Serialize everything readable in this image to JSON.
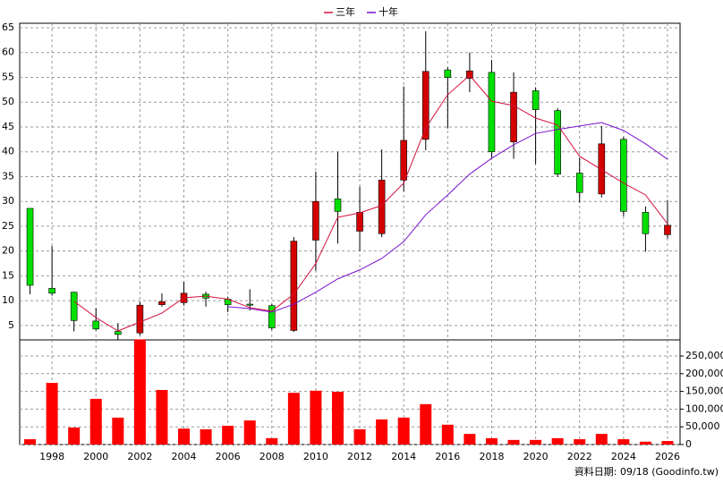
{
  "chart_data": [
    {
      "type": "candlestick",
      "x": [
        1997,
        1998,
        1999,
        2000,
        2001,
        2002,
        2003,
        2004,
        2005,
        2006,
        2007,
        2008,
        2009,
        2010,
        2011,
        2012,
        2013,
        2014,
        2015,
        2016,
        2017,
        2018,
        2019,
        2020,
        2021,
        2022,
        2023,
        2024,
        2025,
        2026
      ],
      "open": [
        28.6,
        12.5,
        11.7,
        5.9,
        3.8,
        3.5,
        9.2,
        9.6,
        11.3,
        10.3,
        9.3,
        9.0,
        4.0,
        22.2,
        30.5,
        24.0,
        23.5,
        34.3,
        42.5,
        56.5,
        54.8,
        56.0,
        42.0,
        52.3,
        48.3,
        35.7,
        31.5,
        42.5,
        27.8,
        23.3
      ],
      "high": [
        28.6,
        21.0,
        11.8,
        8.5,
        5.5,
        9.8,
        11.5,
        13.8,
        11.8,
        10.8,
        12.3,
        9.3,
        22.8,
        36.0,
        40.0,
        33.0,
        40.5,
        53.2,
        64.3,
        57.0,
        60.0,
        58.5,
        56.0,
        53.0,
        48.8,
        38.8,
        45.2,
        43.0,
        29.0,
        30.3
      ],
      "low": [
        11.3,
        11.0,
        3.8,
        4.0,
        2.1,
        3.0,
        8.8,
        9.0,
        8.8,
        7.7,
        8.0,
        4.1,
        3.7,
        16.0,
        21.5,
        20.0,
        22.8,
        32.0,
        40.3,
        44.7,
        52.0,
        38.6,
        38.6,
        37.5,
        35.0,
        29.8,
        30.8,
        27.0,
        19.9,
        22.5
      ],
      "close": [
        13.1,
        11.5,
        6.0,
        4.3,
        3.2,
        9.1,
        9.8,
        11.5,
        10.5,
        9.2,
        9.1,
        4.5,
        22.0,
        30.0,
        28.0,
        27.8,
        34.3,
        42.3,
        56.2,
        55.0,
        56.3,
        40.0,
        52.0,
        48.5,
        35.5,
        31.8,
        41.6,
        28.0,
        23.5,
        25.2
      ],
      "up_color": "#d40000",
      "down_color": "#00e000",
      "series": [
        {
          "name": "三年",
          "color": "#d4103c",
          "values": [
            null,
            null,
            9.9,
            6.6,
            3.9,
            5.7,
            7.5,
            10.6,
            10.9,
            10.3,
            8.6,
            7.9,
            11.3,
            17.5,
            26.8,
            27.7,
            29.2,
            33.7,
            44.8,
            51.5,
            55.4,
            50.2,
            49.3,
            46.8,
            45.4,
            39.1,
            36.4,
            33.7,
            31.3,
            25.5
          ]
        },
        {
          "name": "十年",
          "color": "#7a10d0",
          "values": [
            null,
            null,
            null,
            null,
            null,
            null,
            null,
            null,
            null,
            8.8,
            8.4,
            7.7,
            9.3,
            11.7,
            14.4,
            16.2,
            18.5,
            21.9,
            27.3,
            31.3,
            35.5,
            38.7,
            41.4,
            43.7,
            44.5,
            45.2,
            45.9,
            44.3,
            41.6,
            38.5
          ]
        }
      ],
      "xlim": [
        1996.53,
        2026.57
      ],
      "xticks": [
        1998,
        2000,
        2002,
        2004,
        2006,
        2008,
        2010,
        2012,
        2014,
        2016,
        2018,
        2020,
        2022,
        2024,
        2026
      ],
      "ylim": [
        2.1,
        65.9
      ],
      "yticks": [
        5,
        10,
        15,
        20,
        25,
        30,
        35,
        40,
        45,
        50,
        55,
        60,
        65
      ],
      "grid": true,
      "note": "資料日期: 09/18 (Goodinfo.tw)"
    },
    {
      "type": "bar",
      "values": [
        15000,
        174000,
        48000,
        129000,
        76000,
        297000,
        154000,
        45000,
        43000,
        53000,
        68000,
        18000,
        146000,
        152000,
        149000,
        43000,
        71000,
        76000,
        114000,
        56000,
        30000,
        18000,
        13000,
        13000,
        18000,
        15000,
        30000,
        15000,
        8000,
        10000
      ],
      "color": "#ff0000",
      "ylim": [
        0,
        300000
      ],
      "yticks": [
        0,
        {
          "value": 50000,
          "label": "50,000"
        },
        {
          "value": 100000,
          "label": "100,000"
        },
        {
          "value": 150000,
          "label": "150,000"
        },
        {
          "value": 200000,
          "label": "200,000"
        },
        {
          "value": 250000,
          "label": "250,000"
        }
      ],
      "grid": true
    }
  ]
}
